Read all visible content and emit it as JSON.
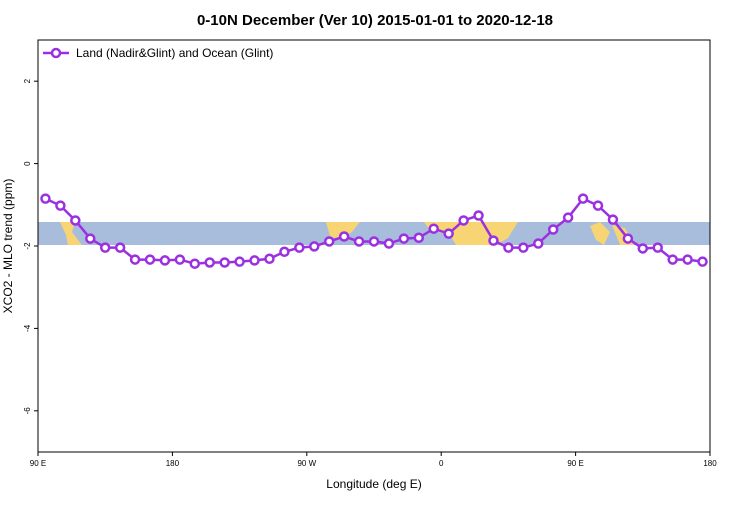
{
  "chart_data": {
    "type": "line",
    "title": "0-10N December (Ver 10)   2015-01-01 to 2020-12-18",
    "x_label": "Longitude (deg E)",
    "y_label": "XCO2 - MLO trend (ppm)",
    "x": [
      95,
      105,
      115,
      125,
      135,
      145,
      155,
      165,
      175,
      185,
      195,
      205,
      215,
      225,
      235,
      245,
      255,
      265,
      275,
      285,
      295,
      305,
      315,
      325,
      335,
      345,
      355,
      365,
      375,
      385,
      395,
      405,
      415,
      425,
      435,
      445,
      455,
      465,
      475,
      485,
      495,
      505,
      515,
      525,
      535
    ],
    "series": [
      {
        "name": "Land (Nadir&Glint) and Ocean (Glint)",
        "color": "#9b30e0",
        "values": [
          -0.85,
          -1.02,
          -1.38,
          -1.82,
          -2.04,
          -2.04,
          -2.33,
          -2.33,
          -2.35,
          -2.33,
          -2.43,
          -2.4,
          -2.4,
          -2.38,
          -2.35,
          -2.31,
          -2.14,
          -2.04,
          -2.01,
          -1.89,
          -1.77,
          -1.89,
          -1.89,
          -1.94,
          -1.82,
          -1.8,
          -1.58,
          -1.7,
          -1.38,
          -1.26,
          -1.87,
          -2.04,
          -2.04,
          -1.94,
          -1.6,
          -1.31,
          -0.85,
          -1.02,
          -1.36,
          -1.82,
          -2.06,
          -2.04,
          -2.33,
          -2.33,
          -2.38
        ]
      }
    ],
    "xlim": [
      90,
      540
    ],
    "xticks": [
      {
        "value": 90,
        "label": "90 E"
      },
      180,
      {
        "value": 270,
        "label": "90 W"
      },
      {
        "value": 360,
        "label": "0"
      },
      {
        "value": 450,
        "label": "90 E"
      },
      {
        "value": 540,
        "label": "180"
      }
    ],
    "ylim": [
      -7,
      3
    ],
    "yticks": [
      -6,
      -4,
      -2,
      0,
      2
    ],
    "legend": "top-left"
  }
}
